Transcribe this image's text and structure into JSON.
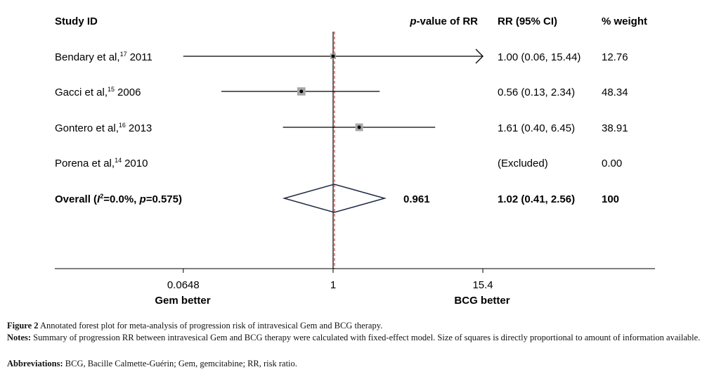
{
  "chart_data": {
    "type": "forest",
    "scale": "log",
    "xlim": [
      0.0648,
      15.4
    ],
    "null_value": 1,
    "headers": {
      "study": "Study ID",
      "pvalue": "p-value of RR",
      "pvalue_italic": "p",
      "pvalue_rest": "-value of RR",
      "rr": "RR (95% CI)",
      "weight": "% weight"
    },
    "studies": [
      {
        "label": "Bendary et al,",
        "ref": "17",
        "year": "2011",
        "rr": 1.0,
        "lo": 0.06,
        "hi": 15.44,
        "rr_text": "1.00 (0.06, 15.44)",
        "weight": "12.76",
        "arrow_right": true
      },
      {
        "label": "Gacci et al,",
        "ref": "15",
        "year": "2006",
        "rr": 0.56,
        "lo": 0.13,
        "hi": 2.34,
        "rr_text": "0.56 (0.13, 2.34)",
        "weight": "48.34"
      },
      {
        "label": "Gontero et al,",
        "ref": "16",
        "year": "2013",
        "rr": 1.61,
        "lo": 0.4,
        "hi": 6.45,
        "rr_text": "1.61 (0.40, 6.45)",
        "weight": "38.91"
      },
      {
        "label": "Porena et al,",
        "ref": "14",
        "year": "2010",
        "rr": null,
        "rr_text": "(Excluded)",
        "weight": "0.00"
      }
    ],
    "overall": {
      "label_a": "Overall (",
      "i": "I",
      "sup": "2",
      "label_b": "=0.0%, ",
      "p": "p",
      "label_c": "=0.575)",
      "rr": 1.02,
      "lo": 0.41,
      "hi": 2.56,
      "pvalue": "0.961",
      "rr_text": "1.02 (0.41, 2.56)",
      "weight": "100"
    },
    "ticks": [
      {
        "value": 0.0648,
        "label": "0.0648"
      },
      {
        "value": 1,
        "label": "1"
      },
      {
        "value": 15.4,
        "label": "15.4"
      }
    ],
    "favours_left": "Gem better",
    "favours_right": "BCG better"
  },
  "caption": {
    "figure_label": "Figure 2",
    "figure_text": " Annotated forest plot for meta-analysis of progression risk of intravesical Gem and BCG therapy.",
    "notes_label": "Notes:",
    "notes_text": " Summary of progression RR between intravesical Gem and BCG therapy were calculated with fixed-effect model. Size of squares is directly proportional to amount of information available.",
    "abbr_label": "Abbreviations:",
    "abbr_text": " BCG, Bacille Calmette-Guérin; Gem, gemcitabine; RR, risk ratio."
  },
  "colors": {
    "square": "#a6a6a6",
    "diamond": "#1f2a44",
    "null_dash": "#c0504d"
  }
}
